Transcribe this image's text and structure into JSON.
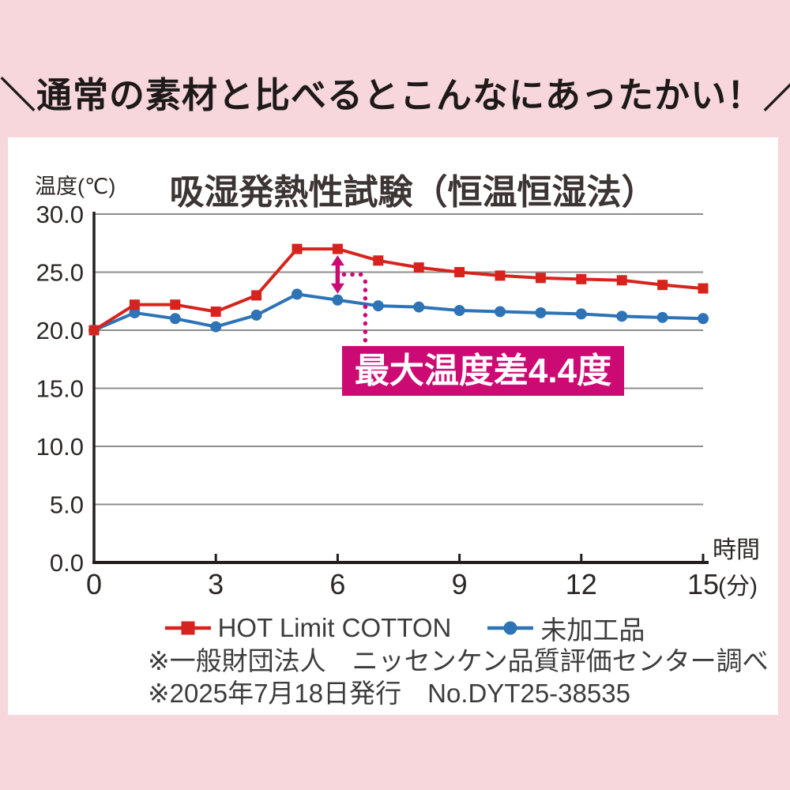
{
  "header": {
    "headline": "＼通常の素材と比べるとこんなにあったかい！／"
  },
  "panel": {
    "footnotes": [
      "※一般財団法人　ニッセンケン品質評価センター調べ",
      "※2025年7月18日発行　No.DYT25-38535"
    ]
  },
  "chart_data": {
    "type": "line",
    "title": "吸湿発熱性試験（恒温恒湿法）",
    "ylabel": "温度(℃)",
    "x_axis_corner_label": "時間",
    "x_axis_suffix": "(分)",
    "x": [
      0,
      1,
      2,
      3,
      4,
      5,
      6,
      7,
      8,
      9,
      10,
      11,
      12,
      13,
      14,
      15
    ],
    "x_ticks": [
      0,
      3,
      6,
      9,
      12,
      15
    ],
    "x_tick_labels": [
      "0",
      "3",
      "6",
      "9",
      "12",
      "15"
    ],
    "ylim": [
      0,
      30
    ],
    "y_ticks": [
      30,
      25,
      20,
      15,
      10,
      5,
      0
    ],
    "y_tick_labels": [
      "30.0",
      "25.0",
      "20.0",
      "15.0",
      "10.0",
      "5.0",
      "0.0"
    ],
    "grid": true,
    "legend_position": "bottom",
    "series": [
      {
        "name": "HOT Limit COTTON",
        "color": "#d7231e",
        "marker": "square",
        "values": [
          20.0,
          22.2,
          22.2,
          21.6,
          23.0,
          27.0,
          27.0,
          26.0,
          25.4,
          25.0,
          24.7,
          24.5,
          24.4,
          24.3,
          23.9,
          23.6
        ]
      },
      {
        "name": "未加工品",
        "color": "#2d73b5",
        "marker": "circle",
        "values": [
          20.0,
          21.5,
          21.0,
          20.3,
          21.3,
          23.1,
          22.6,
          22.1,
          22.0,
          21.7,
          21.6,
          21.5,
          21.4,
          21.2,
          21.1,
          21.0
        ]
      }
    ],
    "annotation": {
      "label": "最大温度差4.4度",
      "at_minute": 6,
      "diff_degrees": 4.4,
      "color": "#cc0a74"
    }
  },
  "colors": {
    "background": "#f7d6dc",
    "panel": "#ffffff",
    "headline_text": "#1d1a19",
    "title_text": "#3d3534",
    "grid": "#8d8d8d",
    "axis": "#221e1d",
    "tick_text": "#2b2726",
    "note_text": "#3c3c3c",
    "red": "#d7231e",
    "blue": "#2d73b5",
    "magenta": "#cc0a74"
  }
}
